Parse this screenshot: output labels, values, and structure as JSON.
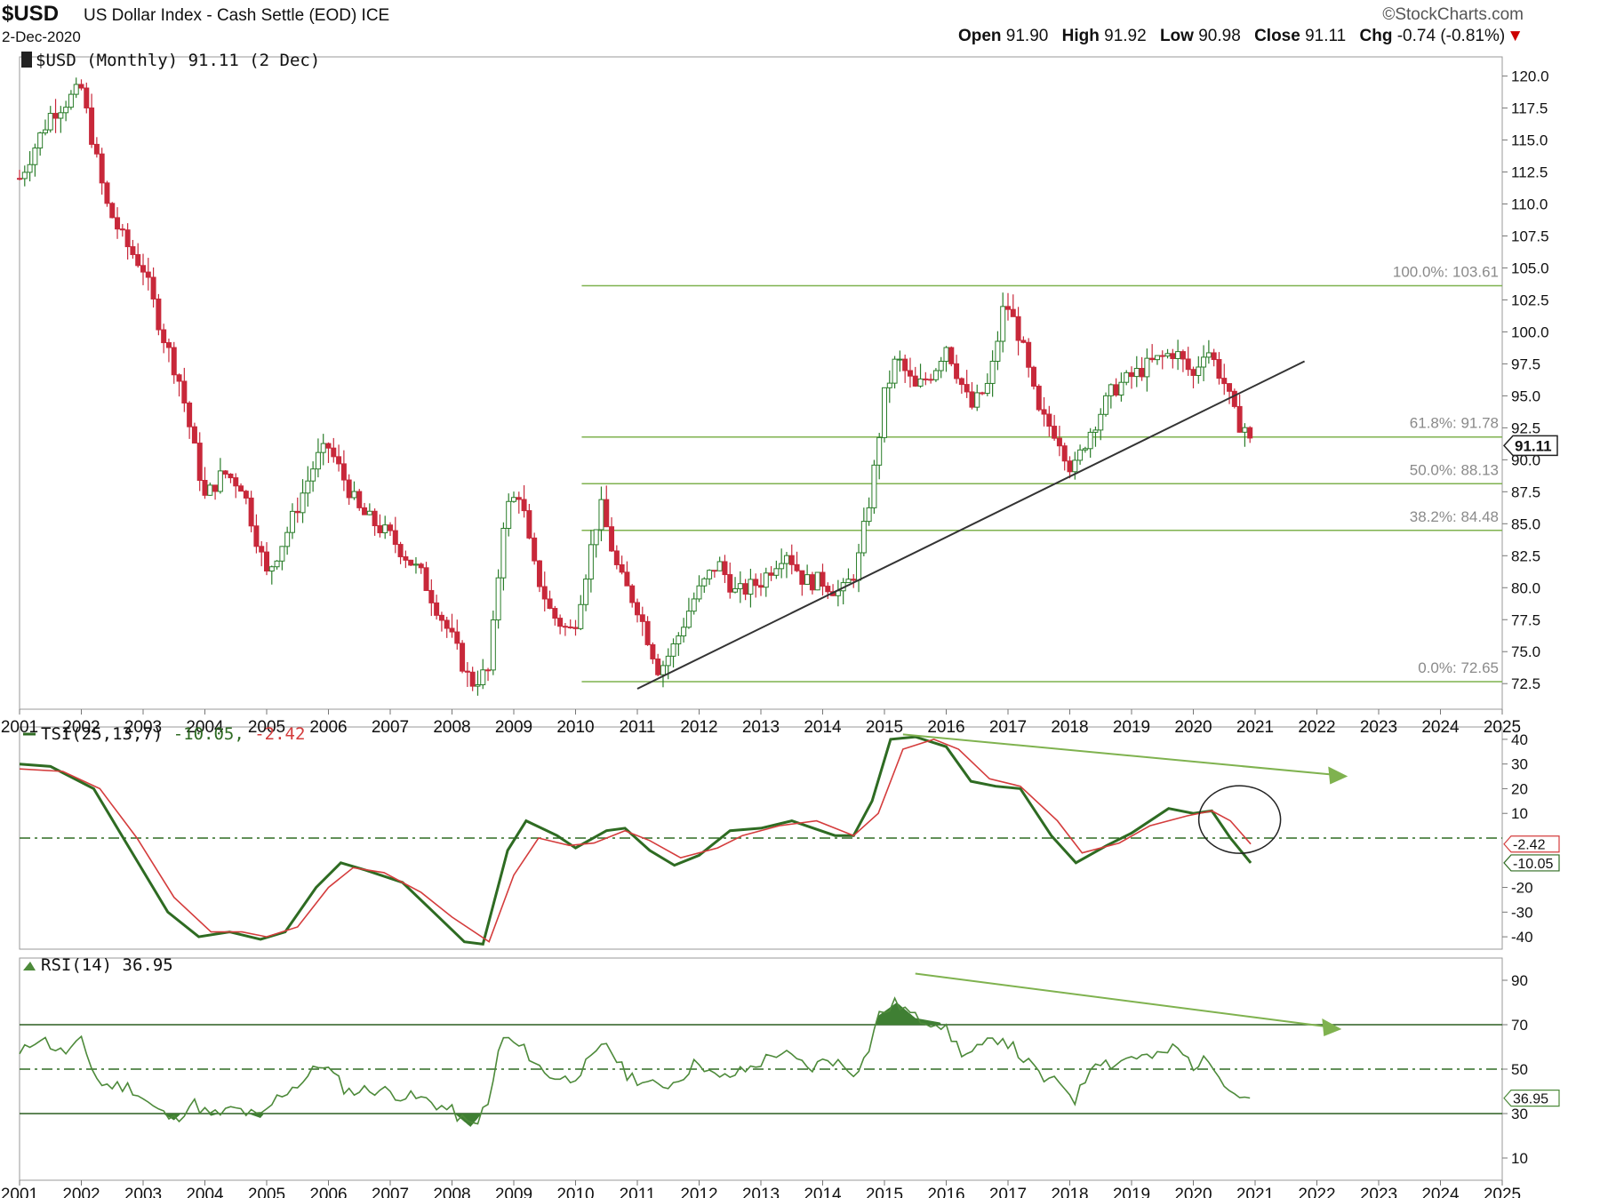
{
  "header": {
    "symbol": "$USD",
    "name": "US Dollar Index - Cash Settle (EOD)",
    "exchange": "ICE",
    "date": "2-Dec-2020",
    "brand": "©StockCharts.com",
    "open_label": "Open",
    "open": "91.90",
    "high_label": "High",
    "high": "91.92",
    "low_label": "Low",
    "low": "90.98",
    "close_label": "Close",
    "close": "91.11",
    "chg_label": "Chg",
    "chg": "-0.74 (-0.81%)",
    "down_marker": "▼"
  },
  "colors": {
    "up": "#2a7d2a",
    "down": "#c8283a",
    "tsi": "#2e6b22",
    "signal": "#d43c3c",
    "fib": "#7fb24f",
    "rsi": "#4d8a3a",
    "trend": "#333333"
  },
  "chart_data": [
    {
      "type": "candlestick",
      "title": "$USD (Monthly) 91.11 (2 Dec)",
      "x_ticks": [
        "2001",
        "2002",
        "2003",
        "2004",
        "2005",
        "2006",
        "2007",
        "2008",
        "2009",
        "2010",
        "2011",
        "2012",
        "2013",
        "2014",
        "2015",
        "2016",
        "2017",
        "2018",
        "2019",
        "2020",
        "2021",
        "2022",
        "2023",
        "2024",
        "2025"
      ],
      "y_ticks": [
        "120.0",
        "117.5",
        "115.0",
        "112.5",
        "110.0",
        "107.5",
        "105.0",
        "102.5",
        "100.0",
        "97.5",
        "95.0",
        "92.5",
        "90.0",
        "87.5",
        "85.0",
        "82.5",
        "80.0",
        "77.5",
        "75.0",
        "72.5"
      ],
      "ylim": [
        70.5,
        121.5
      ],
      "last_value": "91.11",
      "close_series": [
        [
          2001.0,
          112.0
        ],
        [
          2001.5,
          117.0
        ],
        [
          2002.0,
          119.0
        ],
        [
          2002.4,
          110.0
        ],
        [
          2002.7,
          107.0
        ],
        [
          2003.0,
          105.0
        ],
        [
          2003.3,
          100.0
        ],
        [
          2003.6,
          96.0
        ],
        [
          2004.0,
          87.0
        ],
        [
          2004.3,
          89.0
        ],
        [
          2004.6,
          88.0
        ],
        [
          2005.0,
          81.0
        ],
        [
          2005.3,
          84.0
        ],
        [
          2005.8,
          90.0
        ],
        [
          2006.0,
          91.0
        ],
        [
          2006.5,
          86.0
        ],
        [
          2007.0,
          84.0
        ],
        [
          2007.5,
          81.0
        ],
        [
          2008.0,
          76.0
        ],
        [
          2008.3,
          72.5
        ],
        [
          2008.6,
          73.5
        ],
        [
          2008.85,
          86.0
        ],
        [
          2009.1,
          87.5
        ],
        [
          2009.3,
          82.0
        ],
        [
          2009.6,
          78.0
        ],
        [
          2009.9,
          76.5
        ],
        [
          2010.0,
          77.5
        ],
        [
          2010.4,
          86.5
        ],
        [
          2010.7,
          81.0
        ],
        [
          2011.0,
          78.5
        ],
        [
          2011.35,
          73.5
        ],
        [
          2011.6,
          75.5
        ],
        [
          2011.9,
          79.0
        ],
        [
          2012.3,
          82.0
        ],
        [
          2012.6,
          79.5
        ],
        [
          2013.0,
          80.5
        ],
        [
          2013.4,
          83.0
        ],
        [
          2013.7,
          80.5
        ],
        [
          2014.0,
          80.5
        ],
        [
          2014.3,
          79.5
        ],
        [
          2014.55,
          81.5
        ],
        [
          2014.8,
          88.0
        ],
        [
          2015.0,
          95.0
        ],
        [
          2015.2,
          98.0
        ],
        [
          2015.5,
          95.5
        ],
        [
          2015.8,
          97.0
        ],
        [
          2016.0,
          99.0
        ],
        [
          2016.4,
          94.0
        ],
        [
          2016.7,
          96.0
        ],
        [
          2016.95,
          102.5
        ],
        [
          2017.2,
          99.5
        ],
        [
          2017.5,
          93.5
        ],
        [
          2017.8,
          92.0
        ],
        [
          2018.05,
          89.0
        ],
        [
          2018.3,
          92.0
        ],
        [
          2018.7,
          95.5
        ],
        [
          2019.0,
          96.5
        ],
        [
          2019.3,
          97.5
        ],
        [
          2019.7,
          98.5
        ],
        [
          2020.0,
          96.5
        ],
        [
          2020.2,
          99.0
        ],
        [
          2020.5,
          96.0
        ],
        [
          2020.7,
          93.0
        ],
        [
          2020.85,
          92.5
        ],
        [
          2020.93,
          91.11
        ]
      ],
      "fib_levels": [
        {
          "label": "100.0%: 103.61",
          "value": 103.61
        },
        {
          "label": "61.8%: 91.78",
          "value": 91.78
        },
        {
          "label": "50.0%: 88.13",
          "value": 88.13
        },
        {
          "label": "38.2%: 84.48",
          "value": 84.48
        },
        {
          "label": "0.0%: 72.65",
          "value": 72.65
        }
      ],
      "fib_range": [
        2010.1,
        2025.0
      ],
      "trendline": [
        [
          2011.0,
          72.1
        ],
        [
          2021.8,
          97.7
        ]
      ]
    },
    {
      "type": "line",
      "label": "TSI(25,13,7)",
      "tsi_value": "-10.05",
      "signal_value": "-2.42",
      "y_ticks": [
        "40",
        "30",
        "20",
        "10",
        "-20",
        "-30",
        "-40"
      ],
      "ylim": [
        -45,
        45
      ],
      "series": [
        {
          "name": "TSI",
          "values": [
            [
              2001.0,
              30
            ],
            [
              2001.5,
              29
            ],
            [
              2002.2,
              20
            ],
            [
              2002.8,
              -5
            ],
            [
              2003.4,
              -30
            ],
            [
              2003.9,
              -40
            ],
            [
              2004.4,
              -38
            ],
            [
              2004.9,
              -41
            ],
            [
              2005.3,
              -38
            ],
            [
              2005.8,
              -20
            ],
            [
              2006.2,
              -10
            ],
            [
              2006.6,
              -13
            ],
            [
              2007.2,
              -18
            ],
            [
              2007.7,
              -30
            ],
            [
              2008.2,
              -42
            ],
            [
              2008.5,
              -43
            ],
            [
              2008.9,
              -5
            ],
            [
              2009.2,
              7
            ],
            [
              2009.7,
              1
            ],
            [
              2010.0,
              -4
            ],
            [
              2010.5,
              3
            ],
            [
              2010.8,
              4
            ],
            [
              2011.2,
              -5
            ],
            [
              2011.6,
              -11
            ],
            [
              2012.0,
              -7
            ],
            [
              2012.5,
              3
            ],
            [
              2013.0,
              4
            ],
            [
              2013.5,
              7
            ],
            [
              2014.2,
              1
            ],
            [
              2014.5,
              1
            ],
            [
              2014.8,
              15
            ],
            [
              2015.1,
              40
            ],
            [
              2015.5,
              41
            ],
            [
              2016.0,
              37
            ],
            [
              2016.4,
              23
            ],
            [
              2016.8,
              21
            ],
            [
              2017.2,
              20
            ],
            [
              2017.7,
              1
            ],
            [
              2018.1,
              -10
            ],
            [
              2018.6,
              -3
            ],
            [
              2019.0,
              2
            ],
            [
              2019.6,
              12
            ],
            [
              2020.0,
              10
            ],
            [
              2020.3,
              11
            ],
            [
              2020.6,
              0
            ],
            [
              2020.93,
              -10.05
            ]
          ]
        },
        {
          "name": "Signal",
          "values": [
            [
              2001.0,
              28
            ],
            [
              2001.7,
              27
            ],
            [
              2002.3,
              20
            ],
            [
              2002.9,
              0
            ],
            [
              2003.5,
              -24
            ],
            [
              2004.1,
              -38
            ],
            [
              2004.6,
              -38
            ],
            [
              2005.0,
              -40
            ],
            [
              2005.5,
              -36
            ],
            [
              2006.0,
              -20
            ],
            [
              2006.4,
              -12
            ],
            [
              2006.9,
              -14
            ],
            [
              2007.5,
              -22
            ],
            [
              2008.0,
              -32
            ],
            [
              2008.6,
              -42
            ],
            [
              2009.0,
              -15
            ],
            [
              2009.4,
              0
            ],
            [
              2009.9,
              -3
            ],
            [
              2010.3,
              -2
            ],
            [
              2010.8,
              3
            ],
            [
              2011.2,
              -1
            ],
            [
              2011.7,
              -8
            ],
            [
              2012.3,
              -4
            ],
            [
              2012.7,
              1
            ],
            [
              2013.3,
              5
            ],
            [
              2013.9,
              7
            ],
            [
              2014.5,
              1
            ],
            [
              2014.9,
              10
            ],
            [
              2015.3,
              36
            ],
            [
              2015.8,
              40
            ],
            [
              2016.2,
              36
            ],
            [
              2016.7,
              24
            ],
            [
              2017.2,
              21
            ],
            [
              2017.8,
              7
            ],
            [
              2018.2,
              -6
            ],
            [
              2018.8,
              -2
            ],
            [
              2019.3,
              5
            ],
            [
              2019.9,
              9
            ],
            [
              2020.3,
              11
            ],
            [
              2020.6,
              7
            ],
            [
              2020.93,
              -2.42
            ]
          ]
        }
      ],
      "divergence_arrow": [
        [
          2015.3,
          42
        ],
        [
          2022.5,
          25
        ]
      ],
      "highlight_circle": [
        2020.75,
        7.5
      ]
    },
    {
      "type": "area",
      "label": "RSI(14)",
      "rsi_value": "36.95",
      "y_ticks": [
        "90",
        "70",
        "50",
        "30",
        "10"
      ],
      "ylim": [
        0,
        100
      ],
      "levels": [
        70,
        50,
        30
      ],
      "series": [
        {
          "name": "RSI",
          "values": [
            [
              2001.0,
              56
            ],
            [
              2001.3,
              65
            ],
            [
              2001.7,
              57
            ],
            [
              2002.0,
              62
            ],
            [
              2002.3,
              43
            ],
            [
              2002.8,
              42
            ],
            [
              2003.2,
              32
            ],
            [
              2003.5,
              27
            ],
            [
              2003.8,
              35
            ],
            [
              2004.1,
              29
            ],
            [
              2004.5,
              32
            ],
            [
              2004.9,
              28
            ],
            [
              2005.2,
              38
            ],
            [
              2005.6,
              45
            ],
            [
              2005.9,
              53
            ],
            [
              2006.3,
              40
            ],
            [
              2006.8,
              41
            ],
            [
              2007.2,
              38
            ],
            [
              2007.6,
              36
            ],
            [
              2008.0,
              31
            ],
            [
              2008.3,
              24
            ],
            [
              2008.6,
              34
            ],
            [
              2008.8,
              65
            ],
            [
              2009.2,
              58
            ],
            [
              2009.5,
              48
            ],
            [
              2009.9,
              45
            ],
            [
              2010.3,
              55
            ],
            [
              2010.5,
              62
            ],
            [
              2010.8,
              48
            ],
            [
              2011.3,
              42
            ],
            [
              2011.6,
              44
            ],
            [
              2012.0,
              54
            ],
            [
              2012.3,
              45
            ],
            [
              2012.8,
              50
            ],
            [
              2013.3,
              58
            ],
            [
              2013.8,
              50
            ],
            [
              2014.1,
              55
            ],
            [
              2014.5,
              49
            ],
            [
              2014.7,
              55
            ],
            [
              2014.9,
              74
            ],
            [
              2015.2,
              80
            ],
            [
              2015.5,
              73
            ],
            [
              2015.9,
              71
            ],
            [
              2016.3,
              56
            ],
            [
              2016.6,
              60
            ],
            [
              2016.9,
              65
            ],
            [
              2017.2,
              56
            ],
            [
              2017.6,
              45
            ],
            [
              2017.9,
              43
            ],
            [
              2018.1,
              36
            ],
            [
              2018.4,
              55
            ],
            [
              2018.7,
              52
            ],
            [
              2019.0,
              56
            ],
            [
              2019.4,
              55
            ],
            [
              2019.7,
              60
            ],
            [
              2020.0,
              52
            ],
            [
              2020.3,
              54
            ],
            [
              2020.5,
              45
            ],
            [
              2020.7,
              38
            ],
            [
              2020.93,
              36.95
            ]
          ]
        }
      ],
      "divergence_arrow": [
        [
          2015.5,
          93
        ],
        [
          2022.4,
          68
        ]
      ]
    }
  ]
}
